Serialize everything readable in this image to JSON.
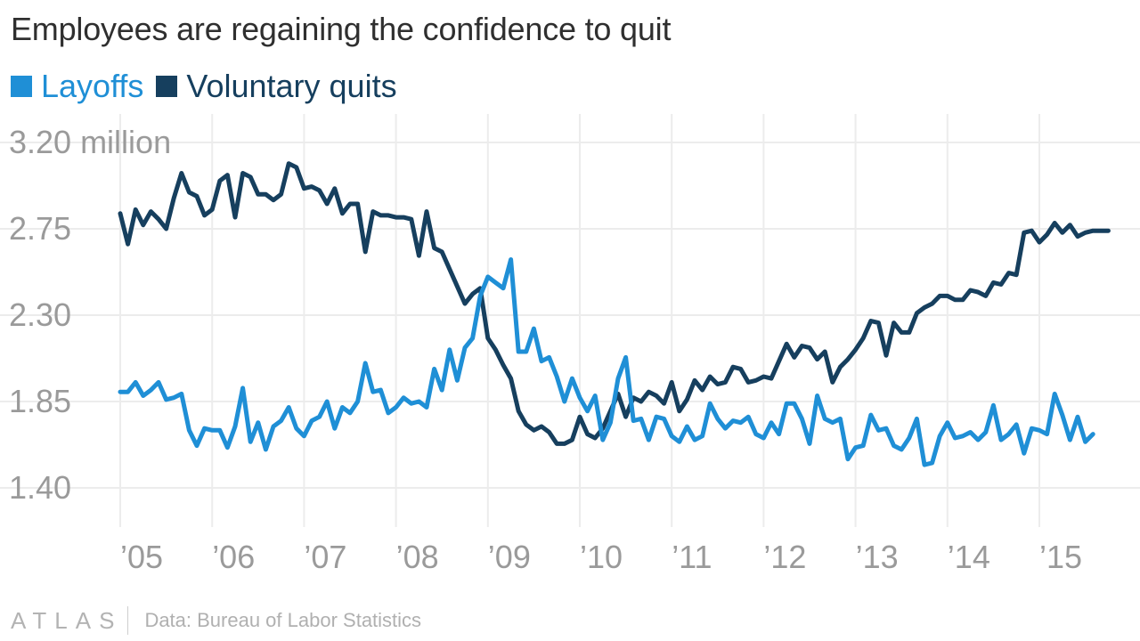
{
  "header": {
    "title": "Employees are regaining the confidence to quit"
  },
  "footer": {
    "logo": "ATLAS",
    "source": "Data: Bureau of Labor Statistics"
  },
  "colors": {
    "layoffs": "#1f8fd6",
    "quits": "#163f5e",
    "grid": "#ececec",
    "tick_text": "#9a9a9a"
  },
  "chart_data": {
    "type": "line",
    "start": "2005-01",
    "frequency": "monthly",
    "ylim": [
      1.25,
      3.32
    ],
    "y_ticks": [
      1.4,
      1.85,
      2.3,
      2.75,
      3.2
    ],
    "y_tick_labels": [
      "1.40",
      "1.85",
      "2.30",
      "2.75",
      "3.20 million"
    ],
    "x_tick_labels": [
      "’05",
      "’06",
      "’07",
      "’08",
      "’09",
      "’10",
      "’11",
      "’12",
      "’13",
      "’14",
      "’15"
    ],
    "grid": true,
    "legend_position": "top-left",
    "series": [
      {
        "name": "Layoffs",
        "values": [
          1.9,
          1.9,
          1.95,
          1.88,
          1.91,
          1.95,
          1.86,
          1.87,
          1.89,
          1.7,
          1.62,
          1.71,
          1.7,
          1.7,
          1.61,
          1.72,
          1.92,
          1.64,
          1.74,
          1.6,
          1.72,
          1.75,
          1.82,
          1.71,
          1.67,
          1.75,
          1.77,
          1.85,
          1.71,
          1.82,
          1.79,
          1.85,
          2.05,
          1.9,
          1.91,
          1.79,
          1.82,
          1.87,
          1.84,
          1.85,
          1.82,
          2.02,
          1.91,
          2.12,
          1.96,
          2.13,
          2.18,
          2.4,
          2.5,
          2.47,
          2.44,
          2.59,
          2.11,
          2.11,
          2.23,
          2.06,
          2.08,
          1.98,
          1.85,
          1.97,
          1.87,
          1.8,
          1.88,
          1.65,
          1.74,
          1.97,
          2.08,
          1.75,
          1.76,
          1.65,
          1.77,
          1.76,
          1.67,
          1.64,
          1.72,
          1.65,
          1.67,
          1.84,
          1.76,
          1.71,
          1.75,
          1.74,
          1.77,
          1.68,
          1.66,
          1.74,
          1.68,
          1.84,
          1.84,
          1.76,
          1.63,
          1.88,
          1.76,
          1.74,
          1.76,
          1.55,
          1.61,
          1.62,
          1.78,
          1.7,
          1.71,
          1.62,
          1.6,
          1.66,
          1.76,
          1.52,
          1.53,
          1.67,
          1.74,
          1.66,
          1.67,
          1.69,
          1.65,
          1.69,
          1.83,
          1.65,
          1.68,
          1.73,
          1.58,
          1.71,
          1.7,
          1.68,
          1.89,
          1.78,
          1.65,
          1.77,
          1.64,
          1.68
        ]
      },
      {
        "name": "Voluntary quits",
        "values": [
          2.83,
          2.67,
          2.85,
          2.77,
          2.84,
          2.8,
          2.75,
          2.91,
          3.04,
          2.94,
          2.92,
          2.82,
          2.85,
          3.0,
          3.03,
          2.81,
          3.04,
          3.02,
          2.93,
          2.93,
          2.9,
          2.93,
          3.09,
          3.07,
          2.96,
          2.97,
          2.95,
          2.88,
          2.96,
          2.83,
          2.88,
          2.88,
          2.63,
          2.84,
          2.82,
          2.82,
          2.81,
          2.81,
          2.8,
          2.61,
          2.84,
          2.65,
          2.63,
          2.54,
          2.45,
          2.36,
          2.41,
          2.44,
          2.18,
          2.12,
          2.04,
          1.97,
          1.8,
          1.73,
          1.7,
          1.72,
          1.69,
          1.63,
          1.63,
          1.65,
          1.77,
          1.68,
          1.66,
          1.71,
          1.8,
          1.89,
          1.77,
          1.87,
          1.85,
          1.9,
          1.88,
          1.84,
          1.95,
          1.8,
          1.86,
          1.96,
          1.91,
          1.98,
          1.94,
          1.95,
          2.03,
          2.02,
          1.95,
          1.96,
          1.98,
          1.97,
          2.06,
          2.15,
          2.08,
          2.14,
          2.13,
          2.07,
          2.11,
          1.95,
          2.03,
          2.07,
          2.12,
          2.18,
          2.27,
          2.26,
          2.09,
          2.26,
          2.21,
          2.21,
          2.31,
          2.34,
          2.36,
          2.4,
          2.4,
          2.38,
          2.38,
          2.43,
          2.42,
          2.4,
          2.47,
          2.46,
          2.52,
          2.51,
          2.73,
          2.74,
          2.68,
          2.72,
          2.78,
          2.73,
          2.77,
          2.71,
          2.73,
          2.74,
          2.74,
          2.74
        ]
      }
    ]
  }
}
